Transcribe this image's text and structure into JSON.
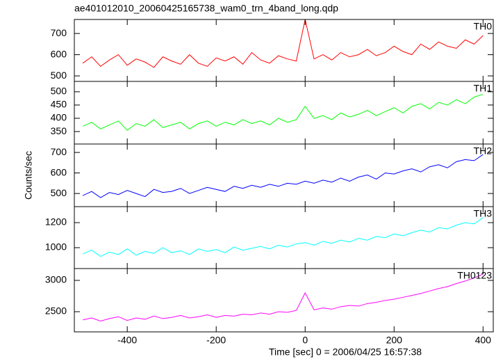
{
  "chart_data": [
    {
      "type": "line",
      "title": "ae401012010_20060425165738_wam0_trn_4band_long.qdp",
      "label": "TH0",
      "color": "#ff0000",
      "x": [
        -500,
        -480,
        -460,
        -440,
        -420,
        -400,
        -380,
        -360,
        -340,
        -320,
        -300,
        -280,
        -260,
        -240,
        -220,
        -200,
        -180,
        -160,
        -140,
        -120,
        -100,
        -80,
        -60,
        -40,
        -20,
        0,
        20,
        40,
        60,
        80,
        100,
        120,
        140,
        160,
        180,
        200,
        220,
        240,
        260,
        280,
        300,
        320,
        340,
        360,
        380,
        400
      ],
      "values": [
        560,
        590,
        545,
        575,
        600,
        550,
        580,
        565,
        540,
        590,
        570,
        555,
        600,
        560,
        545,
        585,
        570,
        590,
        555,
        610,
        575,
        560,
        595,
        580,
        570,
        766,
        580,
        600,
        575,
        610,
        590,
        600,
        625,
        595,
        610,
        640,
        615,
        600,
        650,
        625,
        660,
        640,
        630,
        670,
        650,
        690
      ],
      "xlim": [
        -519,
        423
      ],
      "xticks": [
        -400,
        -200,
        0,
        200,
        400
      ],
      "ylim": [
        474,
        766
      ],
      "yticks": [
        500,
        600,
        700
      ]
    },
    {
      "type": "line",
      "label": "TH1",
      "color": "#00ff00",
      "x": [
        -500,
        -480,
        -460,
        -440,
        -420,
        -400,
        -380,
        -360,
        -340,
        -320,
        -300,
        -280,
        -260,
        -240,
        -220,
        -200,
        -180,
        -160,
        -140,
        -120,
        -100,
        -80,
        -60,
        -40,
        -20,
        0,
        20,
        40,
        60,
        80,
        100,
        120,
        140,
        160,
        180,
        200,
        220,
        240,
        260,
        280,
        300,
        320,
        340,
        360,
        380,
        400
      ],
      "values": [
        370,
        385,
        360,
        375,
        390,
        355,
        380,
        370,
        395,
        365,
        375,
        385,
        360,
        380,
        390,
        370,
        385,
        375,
        395,
        380,
        390,
        375,
        400,
        385,
        395,
        445,
        400,
        410,
        395,
        420,
        405,
        415,
        430,
        410,
        425,
        440,
        420,
        445,
        455,
        435,
        460,
        450,
        470,
        455,
        480,
        490
      ],
      "xlim": [
        -519,
        423
      ],
      "xticks": [
        -400,
        -200,
        0,
        200,
        400
      ],
      "ylim": [
        303,
        539
      ],
      "yticks": [
        350,
        400,
        450,
        500
      ]
    },
    {
      "type": "line",
      "label": "TH2",
      "color": "#0000ff",
      "ylabel": "Counts/sec",
      "x": [
        -500,
        -480,
        -460,
        -440,
        -420,
        -400,
        -380,
        -360,
        -340,
        -320,
        -300,
        -280,
        -260,
        -240,
        -220,
        -200,
        -180,
        -160,
        -140,
        -120,
        -100,
        -80,
        -60,
        -40,
        -20,
        0,
        20,
        40,
        60,
        80,
        100,
        120,
        140,
        160,
        180,
        200,
        220,
        240,
        260,
        280,
        300,
        320,
        340,
        360,
        380,
        400
      ],
      "values": [
        490,
        510,
        480,
        505,
        495,
        515,
        500,
        485,
        520,
        505,
        510,
        525,
        500,
        515,
        530,
        520,
        510,
        535,
        525,
        540,
        530,
        545,
        535,
        550,
        545,
        560,
        550,
        565,
        555,
        575,
        560,
        580,
        590,
        570,
        600,
        595,
        610,
        620,
        605,
        630,
        640,
        625,
        655,
        665,
        660,
        690
      ],
      "xlim": [
        -519,
        423
      ],
      "xticks": [
        -400,
        -200,
        0,
        200,
        400
      ],
      "ylim": [
        436,
        741
      ],
      "yticks": [
        500,
        600,
        700
      ]
    },
    {
      "type": "line",
      "label": "TH3",
      "color": "#00ffff",
      "x": [
        -500,
        -480,
        -460,
        -440,
        -420,
        -400,
        -380,
        -360,
        -340,
        -320,
        -300,
        -280,
        -260,
        -240,
        -220,
        -200,
        -180,
        -160,
        -140,
        -120,
        -100,
        -80,
        -60,
        -40,
        -20,
        0,
        20,
        40,
        60,
        80,
        100,
        120,
        140,
        160,
        180,
        200,
        220,
        240,
        260,
        280,
        300,
        320,
        340,
        360,
        380,
        400
      ],
      "values": [
        950,
        980,
        930,
        965,
        945,
        990,
        940,
        970,
        955,
        1000,
        960,
        975,
        945,
        990,
        970,
        985,
        960,
        1005,
        980,
        995,
        1010,
        990,
        1020,
        1005,
        1030,
        1040,
        1020,
        1050,
        1035,
        1060,
        1045,
        1075,
        1060,
        1090,
        1080,
        1110,
        1095,
        1120,
        1140,
        1125,
        1160,
        1150,
        1180,
        1200,
        1190,
        1240
      ],
      "xlim": [
        -519,
        423
      ],
      "xticks": [
        -400,
        -200,
        0,
        200,
        400
      ],
      "ylim": [
        833,
        1328
      ],
      "yticks": [
        1000,
        1200
      ]
    },
    {
      "type": "line",
      "label": "TH0123",
      "color": "#ff00ff",
      "xlabel": "Time [sec] 0 = 2006/04/25 16:57:38",
      "x": [
        -500,
        -480,
        -460,
        -440,
        -420,
        -400,
        -380,
        -360,
        -340,
        -320,
        -300,
        -280,
        -260,
        -240,
        -220,
        -200,
        -180,
        -160,
        -140,
        -120,
        -100,
        -80,
        -60,
        -40,
        -20,
        0,
        20,
        40,
        60,
        80,
        100,
        120,
        140,
        160,
        180,
        200,
        220,
        240,
        260,
        280,
        300,
        320,
        340,
        360,
        380,
        400
      ],
      "values": [
        2370,
        2400,
        2350,
        2390,
        2420,
        2360,
        2400,
        2380,
        2430,
        2390,
        2410,
        2440,
        2400,
        2420,
        2450,
        2410,
        2440,
        2430,
        2460,
        2450,
        2480,
        2460,
        2500,
        2490,
        2520,
        2800,
        2530,
        2560,
        2540,
        2580,
        2600,
        2590,
        2630,
        2650,
        2680,
        2700,
        2730,
        2760,
        2790,
        2830,
        2870,
        2900,
        2950,
        2990,
        3040,
        3100
      ],
      "xlim": [
        -519,
        423
      ],
      "xticks": [
        -400,
        -200,
        0,
        200,
        400
      ],
      "ylim": [
        2178,
        3189
      ],
      "yticks": [
        2500,
        3000
      ]
    }
  ]
}
